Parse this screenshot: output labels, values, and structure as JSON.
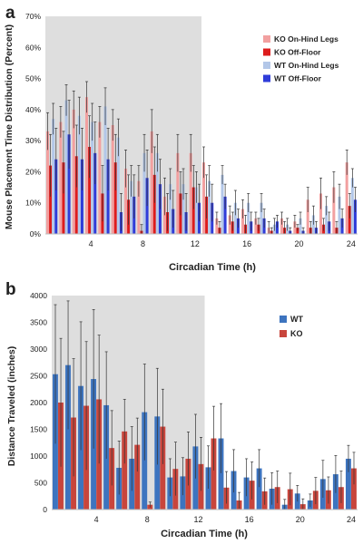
{
  "panels": [
    {
      "letter": "a",
      "chart_data": {
        "type": "bar",
        "ylabel": "Mouse Placement Time Distribution (Percent)",
        "xlabel": "Circadian Time (h)",
        "ylim": [
          0,
          70
        ],
        "y_ticks": [
          0,
          10,
          20,
          30,
          40,
          50,
          60,
          70
        ],
        "y_tick_suffix": "%",
        "x_ticks": [
          4,
          8,
          12,
          16,
          20,
          24
        ],
        "x_range": [
          0.5,
          24.5
        ],
        "x": [
          1,
          2,
          3,
          4,
          5,
          6,
          7,
          8,
          9,
          10,
          11,
          12,
          13,
          14,
          15,
          16,
          17,
          18,
          19,
          20,
          21,
          22,
          23,
          24
        ],
        "shaded_range": [
          0.5,
          12.5
        ],
        "legend_position": "top-right",
        "series": [
          {
            "name": "KO On-Hind Legs",
            "color": "#f2a0a0",
            "values": [
              33,
              36,
              40,
              44,
              36,
              35,
              21,
              17,
              33,
              12,
              26,
              26,
              23,
              5,
              6,
              8,
              5,
              2,
              5,
              4,
              11,
              13,
              15,
              23
            ],
            "errors": [
              6,
              5,
              6,
              5,
              5,
              5,
              6,
              5,
              7,
              6,
              6,
              6,
              5,
              2,
              3,
              3,
              2,
              2,
              2,
              2,
              4,
              5,
              5,
              4
            ]
          },
          {
            "name": "KO Off-Floor",
            "color": "#dd1c1c",
            "values": [
              22,
              23,
              25,
              28,
              13,
              23,
              11,
              1,
              19,
              7,
              13,
              15,
              12,
              2,
              4,
              3,
              3,
              1,
              2,
              2,
              2,
              3,
              2,
              9
            ],
            "errors": [
              10,
              10,
              10,
              10,
              9,
              9,
              8,
              2,
              9,
              6,
              7,
              7,
              7,
              2,
              3,
              3,
              2,
              1,
              2,
              1,
              2,
              2,
              2,
              4
            ]
          },
          {
            "name": "WT On-Hind Legs",
            "color": "#b3c7e8",
            "values": [
              37,
              43,
              38,
              36,
              41,
              31,
              17,
              26,
              26,
              16,
              16,
              15,
              17,
              19,
              10,
              10,
              10,
              3,
              3,
              5,
              6,
              9,
              12,
              18
            ],
            "errors": [
              5,
              5,
              6,
              6,
              6,
              6,
              5,
              6,
              6,
              5,
              5,
              5,
              5,
              3,
              4,
              3,
              3,
              2,
              2,
              2,
              3,
              3,
              4,
              3
            ]
          },
          {
            "name": "WT Off-Floor",
            "color": "#2f3cd9",
            "values": [
              24,
              32,
              24,
              26,
              24,
              7,
              12,
              18,
              16,
              8,
              7,
              10,
              10,
              12,
              5,
              4,
              5,
              4,
              1,
              1,
              2,
              4,
              5,
              11
            ],
            "errors": [
              10,
              11,
              10,
              10,
              10,
              6,
              7,
              9,
              8,
              6,
              6,
              6,
              6,
              4,
              3,
              3,
              3,
              2,
              1,
              1,
              2,
              3,
              3,
              4
            ]
          }
        ]
      }
    },
    {
      "letter": "b",
      "chart_data": {
        "type": "bar",
        "ylabel": "Distance Traveled (inches)",
        "xlabel": "Circadian Time (h)",
        "ylim": [
          0,
          4000
        ],
        "y_ticks": [
          0,
          500,
          1000,
          1500,
          2000,
          2500,
          3000,
          3500,
          4000
        ],
        "y_tick_suffix": "",
        "x_ticks": [
          4,
          8,
          12,
          16,
          20,
          24
        ],
        "x_range": [
          0.5,
          24.5
        ],
        "x": [
          1,
          2,
          3,
          4,
          5,
          6,
          7,
          8,
          9,
          10,
          11,
          12,
          13,
          14,
          15,
          16,
          17,
          18,
          19,
          20,
          21,
          22,
          23,
          24
        ],
        "shaded_range": [
          0.5,
          12.5
        ],
        "legend_position": "top-right",
        "series": [
          {
            "name": "WT",
            "color": "#3d74bf",
            "values": [
              2530,
              2700,
              2310,
              2440,
              1950,
              780,
              950,
              1820,
              1740,
              600,
              620,
              1180,
              790,
              1330,
              720,
              600,
              770,
              390,
              90,
              300,
              170,
              570,
              660,
              950
            ],
            "errors": [
              1300,
              1200,
              1200,
              1300,
              1000,
              500,
              600,
              900,
              900,
              350,
              350,
              600,
              400,
              650,
              400,
              350,
              350,
              300,
              100,
              150,
              120,
              350,
              350,
              250
            ]
          },
          {
            "name": "KO",
            "color": "#c8453c",
            "values": [
              2000,
              1720,
              1940,
              2060,
              1150,
              1460,
              1210,
              90,
              1550,
              760,
              950,
              850,
              1330,
              410,
              170,
              540,
              340,
              420,
              380,
              100,
              350,
              360,
              420,
              770
            ],
            "errors": [
              1200,
              1100,
              1200,
              1200,
              700,
              600,
              500,
              50,
              700,
              500,
              500,
              500,
              600,
              300,
              150,
              350,
              250,
              300,
              300,
              100,
              250,
              250,
              300,
              300
            ]
          }
        ]
      }
    }
  ]
}
